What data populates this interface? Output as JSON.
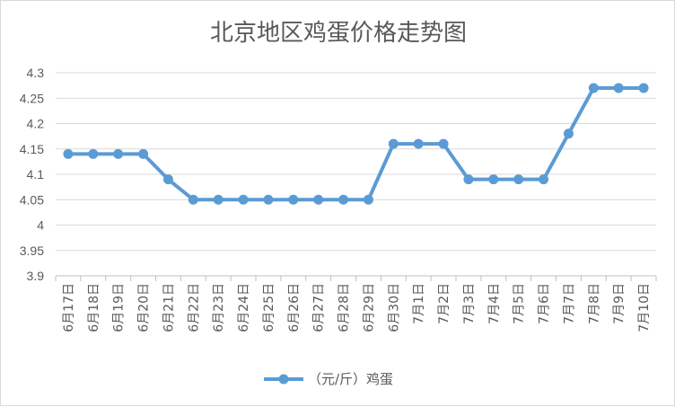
{
  "chart_data": {
    "type": "line",
    "title": "北京地区鸡蛋价格走势图",
    "categories": [
      "6月17日",
      "6月18日",
      "6月19日",
      "6月20日",
      "6月21日",
      "6月22日",
      "6月23日",
      "6月24日",
      "6月25日",
      "6月26日",
      "6月27日",
      "6月28日",
      "6月29日",
      "6月30日",
      "7月1日",
      "7月2日",
      "7月3日",
      "7月4日",
      "7月5日",
      "7月6日",
      "7月7日",
      "7月8日",
      "7月9日",
      "7月10日"
    ],
    "series": [
      {
        "name": "（元/斤）鸡蛋",
        "values": [
          4.14,
          4.14,
          4.14,
          4.14,
          4.09,
          4.05,
          4.05,
          4.05,
          4.05,
          4.05,
          4.05,
          4.05,
          4.05,
          4.16,
          4.16,
          4.16,
          4.09,
          4.09,
          4.09,
          4.09,
          4.18,
          4.27,
          4.27,
          4.27
        ],
        "color": "#5b9bd5"
      }
    ],
    "ylim": [
      3.9,
      4.3
    ],
    "yticks": [
      "3.9",
      "3.95",
      "4",
      "4.05",
      "4.1",
      "4.15",
      "4.2",
      "4.25",
      "4.3"
    ],
    "grid": true,
    "legend": "bottom-center"
  }
}
